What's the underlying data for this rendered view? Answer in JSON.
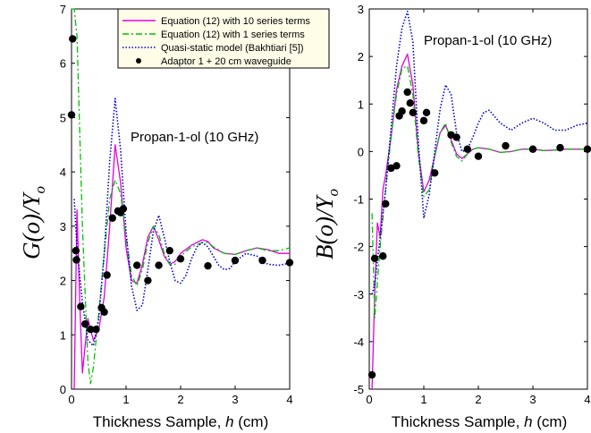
{
  "chart_data": [
    {
      "type": "line",
      "ylabel_main": "G(o)/Y",
      "ylabel_sub": "o",
      "xlabel_prefix": "Thickness Sample, ",
      "xlabel_var": "h",
      "xlabel_suffix": " (cm)",
      "annotation": "Propan-1-ol (10 GHz)",
      "xlim": [
        0,
        4
      ],
      "ylim": [
        0,
        7
      ],
      "xticks": [
        0,
        1,
        2,
        3,
        4
      ],
      "yticks": [
        0,
        1,
        2,
        3,
        4,
        5,
        6,
        7
      ],
      "legend_position": "top-right",
      "series": [
        {
          "name": "Equation (12) with 10 series terms",
          "color": "#e000e0",
          "style": "solid",
          "x": [
            0.05,
            0.1,
            0.15,
            0.2,
            0.3,
            0.4,
            0.5,
            0.6,
            0.7,
            0.8,
            0.9,
            1.0,
            1.1,
            1.2,
            1.3,
            1.4,
            1.5,
            1.6,
            1.7,
            1.8,
            1.9,
            2.0,
            2.2,
            2.4,
            2.5,
            2.6,
            2.8,
            3.0,
            3.2,
            3.4,
            3.6,
            3.8,
            4.0
          ],
          "y": [
            0.0,
            3.3,
            1.6,
            0.3,
            1.3,
            0.9,
            1.1,
            1.7,
            3.0,
            4.5,
            3.8,
            2.6,
            2.0,
            1.95,
            2.3,
            2.8,
            3.0,
            2.75,
            2.45,
            2.3,
            2.35,
            2.5,
            2.65,
            2.75,
            2.72,
            2.6,
            2.5,
            2.48,
            2.55,
            2.6,
            2.57,
            2.5,
            2.5
          ]
        },
        {
          "name": "Equation (12) with 1 series terms",
          "color": "#00c000",
          "style": "dashdot",
          "x": [
            0.0,
            0.05,
            0.1,
            0.2,
            0.3,
            0.35,
            0.4,
            0.5,
            0.6,
            0.7,
            0.8,
            0.9,
            1.0,
            1.1,
            1.2,
            1.3,
            1.4,
            1.5,
            1.6,
            1.7,
            1.8,
            1.9,
            2.0,
            2.2,
            2.4,
            2.5,
            2.6,
            2.8,
            3.0,
            3.2,
            3.4,
            3.6,
            3.8,
            4.0
          ],
          "y": [
            7.0,
            7.0,
            6.5,
            3.0,
            0.5,
            0.1,
            0.4,
            1.4,
            2.5,
            3.5,
            3.85,
            3.6,
            2.8,
            2.1,
            1.9,
            2.2,
            2.7,
            3.0,
            2.85,
            2.5,
            2.3,
            2.3,
            2.45,
            2.62,
            2.7,
            2.7,
            2.62,
            2.5,
            2.48,
            2.55,
            2.6,
            2.55,
            2.55,
            2.6
          ]
        },
        {
          "name": "Quasi-static model (Bakhtiari [5])",
          "color": "#0000cc",
          "style": "dotted",
          "x": [
            0.05,
            0.1,
            0.2,
            0.3,
            0.4,
            0.5,
            0.6,
            0.7,
            0.8,
            0.9,
            1.0,
            1.1,
            1.2,
            1.3,
            1.4,
            1.5,
            1.6,
            1.7,
            1.8,
            1.9,
            2.0,
            2.1,
            2.2,
            2.3,
            2.4,
            2.5,
            2.6,
            2.7,
            2.8,
            2.9,
            3.0,
            3.2,
            3.4,
            3.6,
            3.8,
            4.0
          ],
          "y": [
            3.5,
            2.6,
            1.6,
            0.9,
            0.8,
            1.3,
            2.5,
            4.2,
            5.35,
            4.4,
            2.9,
            1.9,
            1.45,
            1.55,
            2.2,
            2.9,
            3.2,
            2.8,
            2.35,
            2.0,
            1.95,
            2.1,
            2.4,
            2.62,
            2.7,
            2.62,
            2.45,
            2.28,
            2.2,
            2.22,
            2.35,
            2.5,
            2.45,
            2.3,
            2.28,
            2.32
          ]
        }
      ],
      "scatter": {
        "name": "Adaptor 1 + 20 cm waveguide",
        "x": [
          0.0,
          0.02,
          0.08,
          0.09,
          0.17,
          0.25,
          0.35,
          0.45,
          0.55,
          0.6,
          0.65,
          0.75,
          0.85,
          0.9,
          0.95,
          1.2,
          1.4,
          1.6,
          1.8,
          2.0,
          2.5,
          3.0,
          3.5,
          4.0
        ],
        "y": [
          5.05,
          6.45,
          2.55,
          2.38,
          1.52,
          1.2,
          1.1,
          1.1,
          1.5,
          1.42,
          2.1,
          3.15,
          3.28,
          3.25,
          3.32,
          2.28,
          2.0,
          2.28,
          2.55,
          2.4,
          2.27,
          2.37,
          2.37,
          2.33
        ]
      }
    },
    {
      "type": "line",
      "ylabel_main": "B(o)/Y",
      "ylabel_sub": "o",
      "xlabel_prefix": "Thickness Sample, ",
      "xlabel_var": "h",
      "xlabel_suffix": " (cm)",
      "annotation": "Propan-1-ol (10 GHz)",
      "xlim": [
        0,
        4
      ],
      "ylim": [
        -5,
        3
      ],
      "xticks": [
        0,
        1,
        2,
        3,
        4
      ],
      "yticks": [
        -5,
        -4,
        -3,
        -2,
        -1,
        0,
        1,
        2,
        3
      ],
      "series": [
        {
          "name": "Equation (12) with 10 series terms",
          "color": "#e000e0",
          "style": "solid",
          "x": [
            0.05,
            0.1,
            0.15,
            0.2,
            0.25,
            0.3,
            0.4,
            0.5,
            0.6,
            0.7,
            0.8,
            0.9,
            1.0,
            1.1,
            1.2,
            1.3,
            1.4,
            1.5,
            1.6,
            1.7,
            1.8,
            1.9,
            2.0,
            2.2,
            2.4,
            2.6,
            2.8,
            3.0,
            3.2,
            3.4,
            3.6,
            3.8,
            4.0
          ],
          "y": [
            -5.0,
            -3.0,
            -1.5,
            -1.8,
            -0.8,
            -0.5,
            0.3,
            1.3,
            1.8,
            2.05,
            1.4,
            0.0,
            -0.85,
            -0.6,
            -0.1,
            0.4,
            0.55,
            0.25,
            -0.05,
            -0.15,
            -0.05,
            0.05,
            0.08,
            0.05,
            -0.02,
            0.0,
            0.05,
            0.05,
            0.02,
            0.03,
            0.05,
            0.05,
            0.05
          ]
        },
        {
          "name": "Equation (12) with 1 series terms",
          "color": "#00c000",
          "style": "dashdot",
          "x": [
            0.05,
            0.1,
            0.2,
            0.3,
            0.4,
            0.5,
            0.6,
            0.7,
            0.8,
            0.9,
            1.0,
            1.1,
            1.2,
            1.3,
            1.4,
            1.5,
            1.6,
            1.7,
            1.8,
            1.9,
            2.0,
            2.2,
            2.4,
            2.6,
            2.8,
            3.0,
            3.2,
            3.4,
            3.6,
            3.8,
            4.0
          ],
          "y": [
            -1.3,
            -3.5,
            -2.0,
            -0.8,
            0.3,
            1.2,
            1.75,
            1.8,
            1.2,
            -0.1,
            -0.95,
            -0.8,
            -0.1,
            0.4,
            0.6,
            0.2,
            -0.1,
            -0.2,
            -0.05,
            0.05,
            0.08,
            0.05,
            -0.02,
            0.0,
            0.05,
            0.05,
            0.02,
            0.03,
            0.05,
            0.05,
            0.05
          ]
        },
        {
          "name": "Quasi-static model (Bakhtiari [5])",
          "color": "#0000cc",
          "style": "dotted",
          "x": [
            0.05,
            0.1,
            0.2,
            0.3,
            0.4,
            0.5,
            0.6,
            0.7,
            0.8,
            0.9,
            1.0,
            1.1,
            1.2,
            1.3,
            1.4,
            1.5,
            1.6,
            1.7,
            1.8,
            1.9,
            2.0,
            2.1,
            2.2,
            2.4,
            2.6,
            2.8,
            3.0,
            3.2,
            3.4,
            3.6,
            3.8,
            4.0
          ],
          "y": [
            -3.0,
            -2.8,
            -1.8,
            -0.8,
            0.5,
            1.8,
            2.6,
            2.95,
            2.3,
            0.2,
            -1.4,
            -0.9,
            0.0,
            0.9,
            1.4,
            1.2,
            0.4,
            0.0,
            0.05,
            0.3,
            0.6,
            0.82,
            0.87,
            0.6,
            0.45,
            0.6,
            0.7,
            0.6,
            0.45,
            0.45,
            0.55,
            0.6
          ]
        }
      ],
      "scatter": {
        "name": "Adaptor 1 + 20 cm waveguide",
        "x": [
          0.1,
          0.25,
          0.3,
          0.4,
          0.5,
          0.55,
          0.6,
          0.7,
          0.75,
          0.8,
          1.0,
          1.05,
          1.2,
          1.5,
          1.6,
          1.8,
          2.0,
          2.5,
          3.0,
          3.5,
          4.0
        ],
        "y": [
          -2.25,
          -2.2,
          -1.1,
          -0.35,
          -0.3,
          0.75,
          0.85,
          1.25,
          1.02,
          0.82,
          0.65,
          0.82,
          -0.45,
          0.35,
          0.3,
          0.05,
          -0.1,
          0.12,
          0.05,
          0.08,
          0.05
        ]
      },
      "scatter_extra": {
        "x": [
          0.05
        ],
        "y": [
          -4.7
        ]
      }
    }
  ],
  "legend": [
    {
      "label": "Equation (12) with 10 series terms",
      "color": "#e000e0",
      "style": "solid"
    },
    {
      "label": "Equation (12) with 1 series terms",
      "color": "#00c000",
      "style": "dashdot"
    },
    {
      "label": "Quasi-static model (Bakhtiari [5])",
      "color": "#0000cc",
      "style": "dotted"
    },
    {
      "label": "Adaptor 1 + 20 cm waveguide",
      "color": "#000000",
      "style": "marker"
    }
  ]
}
